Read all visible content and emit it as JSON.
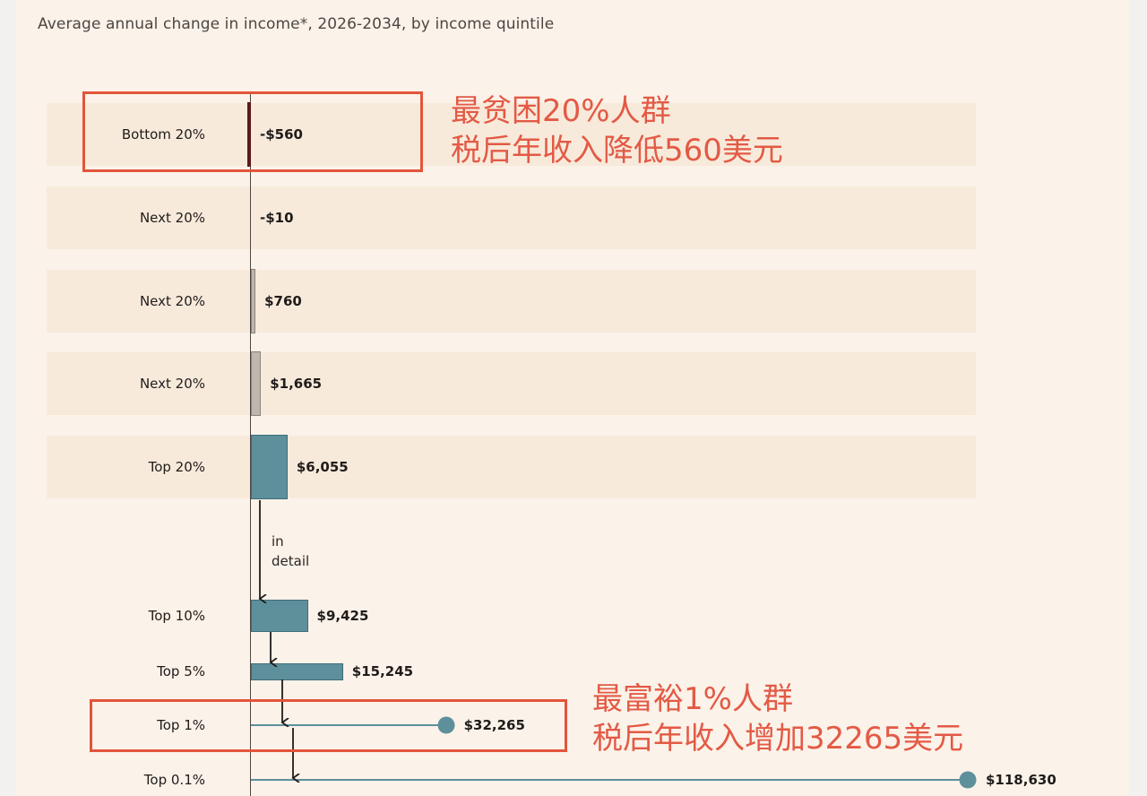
{
  "chart_data": {
    "type": "bar",
    "subtitle": "Average annual change in income*, 2026-2034, by income quintile",
    "categories": [
      "Bottom 20%",
      "Next 20%",
      "Next 20%",
      "Next 20%",
      "Top 20%",
      "Top 10%",
      "Top 5%",
      "Top 1%",
      "Top 0.1%"
    ],
    "values": [
      -560,
      -10,
      760,
      1665,
      6055,
      9425,
      15245,
      32265,
      118630
    ],
    "value_labels": [
      "-$560",
      "-$10",
      "$760",
      "$1,665",
      "$6,055",
      "$9,425",
      "$15,245",
      "$32,265",
      "$118,630"
    ],
    "in_detail_note": [
      "in",
      "detail"
    ],
    "colors": {
      "negative": "#5b1a1d",
      "small_positive": "#bfb7ad",
      "top": "#5e909c",
      "row_band": "#f8eadb",
      "annotation": "#e35a45"
    }
  },
  "annotations": [
    {
      "lines": [
        "最贫困20%人群",
        "税后年收入降低560美元"
      ]
    },
    {
      "lines": [
        "最富裕1%人群",
        "税后年收入增加32265美元"
      ]
    }
  ]
}
